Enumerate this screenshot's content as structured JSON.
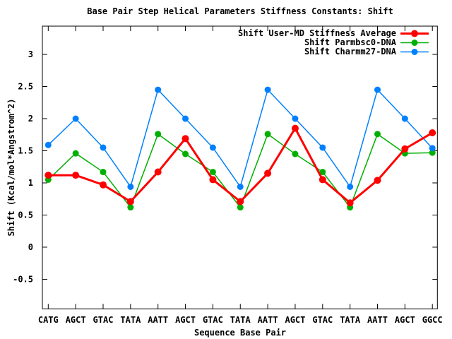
{
  "chart_data": {
    "type": "line",
    "title": "Base Pair Step Helical Parameters Stiffness Constants: Shift",
    "xlabel": "Sequence Base Pair",
    "ylabel": "Shift (Kcal/mol*Angstrom^2)",
    "categories": [
      "CATG",
      "AGCT",
      "GTAC",
      "TATA",
      "AATT",
      "AGCT",
      "GTAC",
      "TATA",
      "AATT",
      "AGCT",
      "GTAC",
      "TATA",
      "AATT",
      "AGCT",
      "GGCC"
    ],
    "series": [
      {
        "name": "Shift User-MD Stiffness Average",
        "color": "#ff0000",
        "line_width": 3,
        "marker_radius": 5,
        "values": [
          1.12,
          1.12,
          0.97,
          0.71,
          1.17,
          1.69,
          1.05,
          0.71,
          1.15,
          1.85,
          1.05,
          0.69,
          1.04,
          1.53,
          1.78
        ]
      },
      {
        "name": "Shift Parmbsc0-DNA",
        "color": "#00b000",
        "line_width": 1.5,
        "marker_radius": 4.5,
        "values": [
          1.05,
          1.46,
          1.17,
          0.62,
          1.76,
          1.45,
          1.17,
          0.62,
          1.76,
          1.45,
          1.17,
          0.62,
          1.76,
          1.46,
          1.47
        ]
      },
      {
        "name": "Shift Charmm27-DNA",
        "color": "#0080ff",
        "line_width": 1.5,
        "marker_radius": 4.5,
        "values": [
          1.59,
          2.0,
          1.55,
          0.94,
          2.45,
          2.0,
          1.55,
          0.94,
          2.45,
          2.0,
          1.55,
          0.94,
          2.45,
          2.0,
          1.54
        ]
      }
    ],
    "draw_order": [
      1,
      2,
      0
    ],
    "yticks": [
      "-0.5",
      "0",
      "0.5",
      "1",
      "1.5",
      "2",
      "2.5",
      "3"
    ],
    "ylim": [
      -0.96,
      3.44
    ],
    "legend_position": "top-right-inside",
    "grid": false,
    "axis_color": "#000000",
    "background": "#ffffff"
  }
}
